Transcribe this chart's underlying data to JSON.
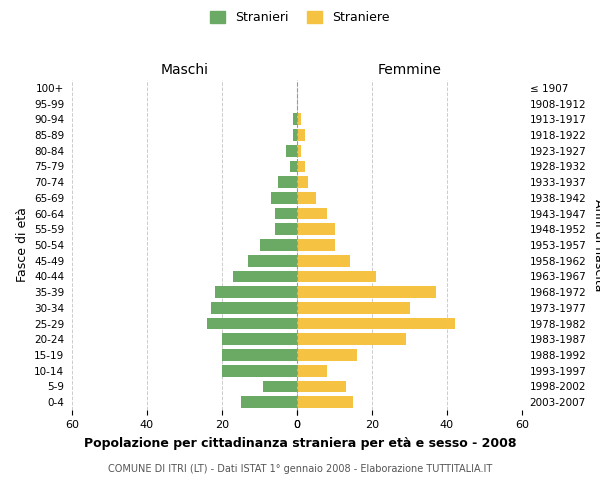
{
  "age_groups": [
    "100+",
    "95-99",
    "90-94",
    "85-89",
    "80-84",
    "75-79",
    "70-74",
    "65-69",
    "60-64",
    "55-59",
    "50-54",
    "45-49",
    "40-44",
    "35-39",
    "30-34",
    "25-29",
    "20-24",
    "15-19",
    "10-14",
    "5-9",
    "0-4"
  ],
  "birth_years": [
    "≤ 1907",
    "1908-1912",
    "1913-1917",
    "1918-1922",
    "1923-1927",
    "1928-1932",
    "1933-1937",
    "1938-1942",
    "1943-1947",
    "1948-1952",
    "1953-1957",
    "1958-1962",
    "1963-1967",
    "1968-1972",
    "1973-1977",
    "1978-1982",
    "1983-1987",
    "1988-1992",
    "1993-1997",
    "1998-2002",
    "2003-2007"
  ],
  "males": [
    0,
    0,
    1,
    1,
    3,
    2,
    5,
    7,
    6,
    6,
    10,
    13,
    17,
    22,
    23,
    24,
    20,
    20,
    20,
    9,
    15
  ],
  "females": [
    0,
    0,
    1,
    2,
    1,
    2,
    3,
    5,
    8,
    10,
    10,
    14,
    21,
    37,
    30,
    42,
    29,
    16,
    8,
    13,
    15
  ],
  "male_color": "#6aaa64",
  "female_color": "#f5c242",
  "male_label": "Stranieri",
  "female_label": "Straniere",
  "title": "Popolazione per cittadinanza straniera per età e sesso - 2008",
  "subtitle": "COMUNE DI ITRI (LT) - Dati ISTAT 1° gennaio 2008 - Elaborazione TUTTITALIA.IT",
  "header_left": "Maschi",
  "header_right": "Femmine",
  "ylabel_left": "Fasce di età",
  "ylabel_right": "Anni di nascita",
  "xlim": 60,
  "background_color": "#ffffff",
  "grid_color": "#cccccc"
}
